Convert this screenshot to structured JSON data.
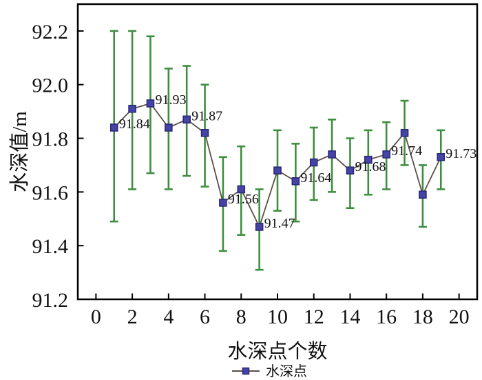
{
  "chart_data": {
    "type": "line",
    "title": "",
    "xlabel": "水深点个数",
    "ylabel": "水深值/m",
    "xlim": [
      -1,
      21
    ],
    "ylim": [
      91.2,
      92.3
    ],
    "xticks": [
      0,
      2,
      4,
      6,
      8,
      10,
      12,
      14,
      16,
      18,
      20
    ],
    "yticks": [
      91.2,
      91.4,
      91.6,
      91.8,
      92.0,
      92.2
    ],
    "ytick_labels": [
      "91.2",
      "91.4",
      "91.6",
      "91.8",
      "92.0",
      "92.2"
    ],
    "grid": false,
    "legend_position": "bottom-center",
    "series": [
      {
        "name": "水深点",
        "x": [
          1,
          2,
          3,
          4,
          5,
          6,
          7,
          8,
          9,
          10,
          11,
          12,
          13,
          14,
          15,
          16,
          17,
          18,
          19
        ],
        "y": [
          91.84,
          91.91,
          91.93,
          91.84,
          91.87,
          91.82,
          91.56,
          91.61,
          91.47,
          91.68,
          91.64,
          91.71,
          91.74,
          91.68,
          91.72,
          91.74,
          91.82,
          91.59,
          91.73
        ],
        "err_lo": [
          91.49,
          91.61,
          91.67,
          91.61,
          91.66,
          91.62,
          91.38,
          91.44,
          91.31,
          91.53,
          91.49,
          91.57,
          91.6,
          91.54,
          91.59,
          91.61,
          91.7,
          91.47,
          91.61
        ],
        "err_hi": [
          92.2,
          92.2,
          92.18,
          92.06,
          92.07,
          92.0,
          91.73,
          91.77,
          91.61,
          91.83,
          91.78,
          91.84,
          91.87,
          91.8,
          91.83,
          91.86,
          91.94,
          91.7,
          91.83
        ],
        "point_labels": [
          "91.84",
          null,
          "91.93",
          null,
          "91.87",
          null,
          "91.56",
          null,
          "91.47",
          null,
          "91.64",
          null,
          null,
          "91.68",
          null,
          "91.74",
          null,
          null,
          "91.73"
        ]
      }
    ],
    "colors": {
      "error_bar": "#3e8e40",
      "marker_fill": "#4543a5",
      "marker_stroke": "#2b2a78",
      "line": "#5c4e48",
      "axis": "#000000",
      "text": "#111111",
      "background": "#ffffff"
    }
  }
}
